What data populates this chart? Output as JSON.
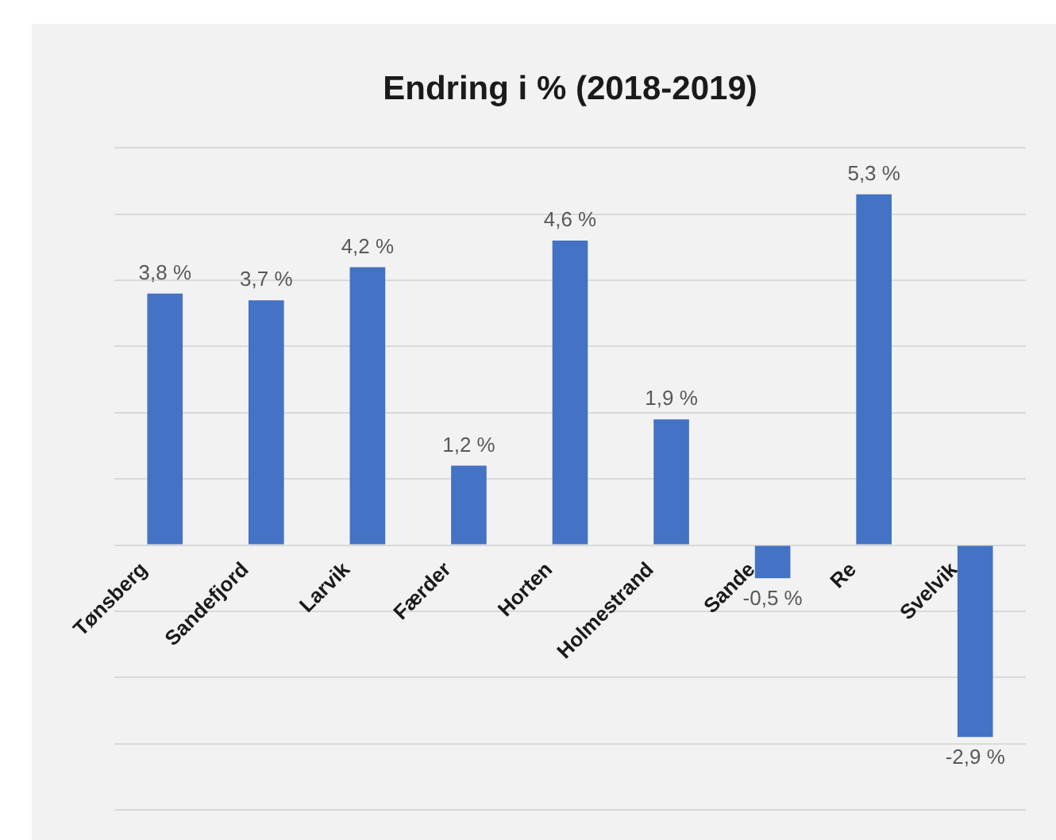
{
  "chart_data": {
    "type": "bar",
    "title": "Endring i % (2018-2019)",
    "categories": [
      "Tønsberg",
      "Sandefjord",
      "Larvik",
      "Færder",
      "Horten",
      "Holmestrand",
      "Sande",
      "Re",
      "Svelvik"
    ],
    "values": [
      3.8,
      3.7,
      4.2,
      1.2,
      4.6,
      1.9,
      -0.5,
      5.3,
      -2.9
    ],
    "value_labels": [
      "3,8 %",
      "3,7 %",
      "4,2 %",
      "1,2 %",
      "4,6 %",
      "1,9 %",
      "-0,5 %",
      "5,3 %",
      "-2,9 %"
    ],
    "color": "#4472c4",
    "ylim": [
      -4,
      6
    ],
    "yticks": [
      {
        "value": -4,
        "label": null
      },
      {
        "value": -3,
        "label": null
      },
      {
        "value": -2,
        "label": null
      },
      {
        "value": -1,
        "label": null
      },
      {
        "value": 0,
        "label": null
      },
      {
        "value": 1,
        "label": null
      },
      {
        "value": 2,
        "label": null
      },
      {
        "value": 3,
        "label": null
      },
      {
        "value": 4,
        "label": null
      },
      {
        "value": 5,
        "label": null
      },
      {
        "value": 6,
        "label": null
      }
    ],
    "grid": "y",
    "tick_labels": "x"
  }
}
